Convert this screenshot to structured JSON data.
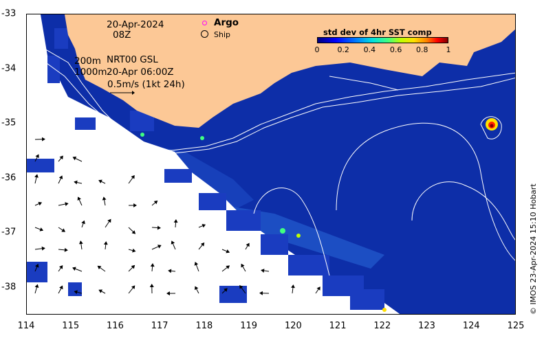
{
  "map": {
    "x_axis": {
      "ticks": [
        "114",
        "115",
        "116",
        "117",
        "118",
        "119",
        "120",
        "121",
        "122",
        "123",
        "124",
        "125"
      ]
    },
    "y_axis": {
      "ticks": [
        "-33",
        "-34",
        "-35",
        "-36",
        "-37",
        "-38"
      ]
    },
    "date": "20-Apr-2024",
    "hour": "08Z",
    "isobath_shallow": "200m",
    "isobath_deep": "1000m",
    "current_source": "NRT00 GSL",
    "current_time": "20-Apr 06:00Z",
    "scale_arrow_label": "0.5m/s (1kt 24h)",
    "legend": {
      "argo": "Argo",
      "ship": "Ship",
      "argo_color": "#ff00ff"
    },
    "colorbar": {
      "title": "std dev of 4hr SST comp",
      "ticks": [
        "0",
        "0.2",
        "0.4",
        "0.6",
        "0.8",
        "1"
      ]
    },
    "credit": "© IMOS 23-Apr-2024 15:10 Hobart",
    "colors": {
      "land": "#fcc896",
      "ocean": "#0a2aa6",
      "no_data": "#ffffff",
      "contour": "#ffffff"
    }
  }
}
